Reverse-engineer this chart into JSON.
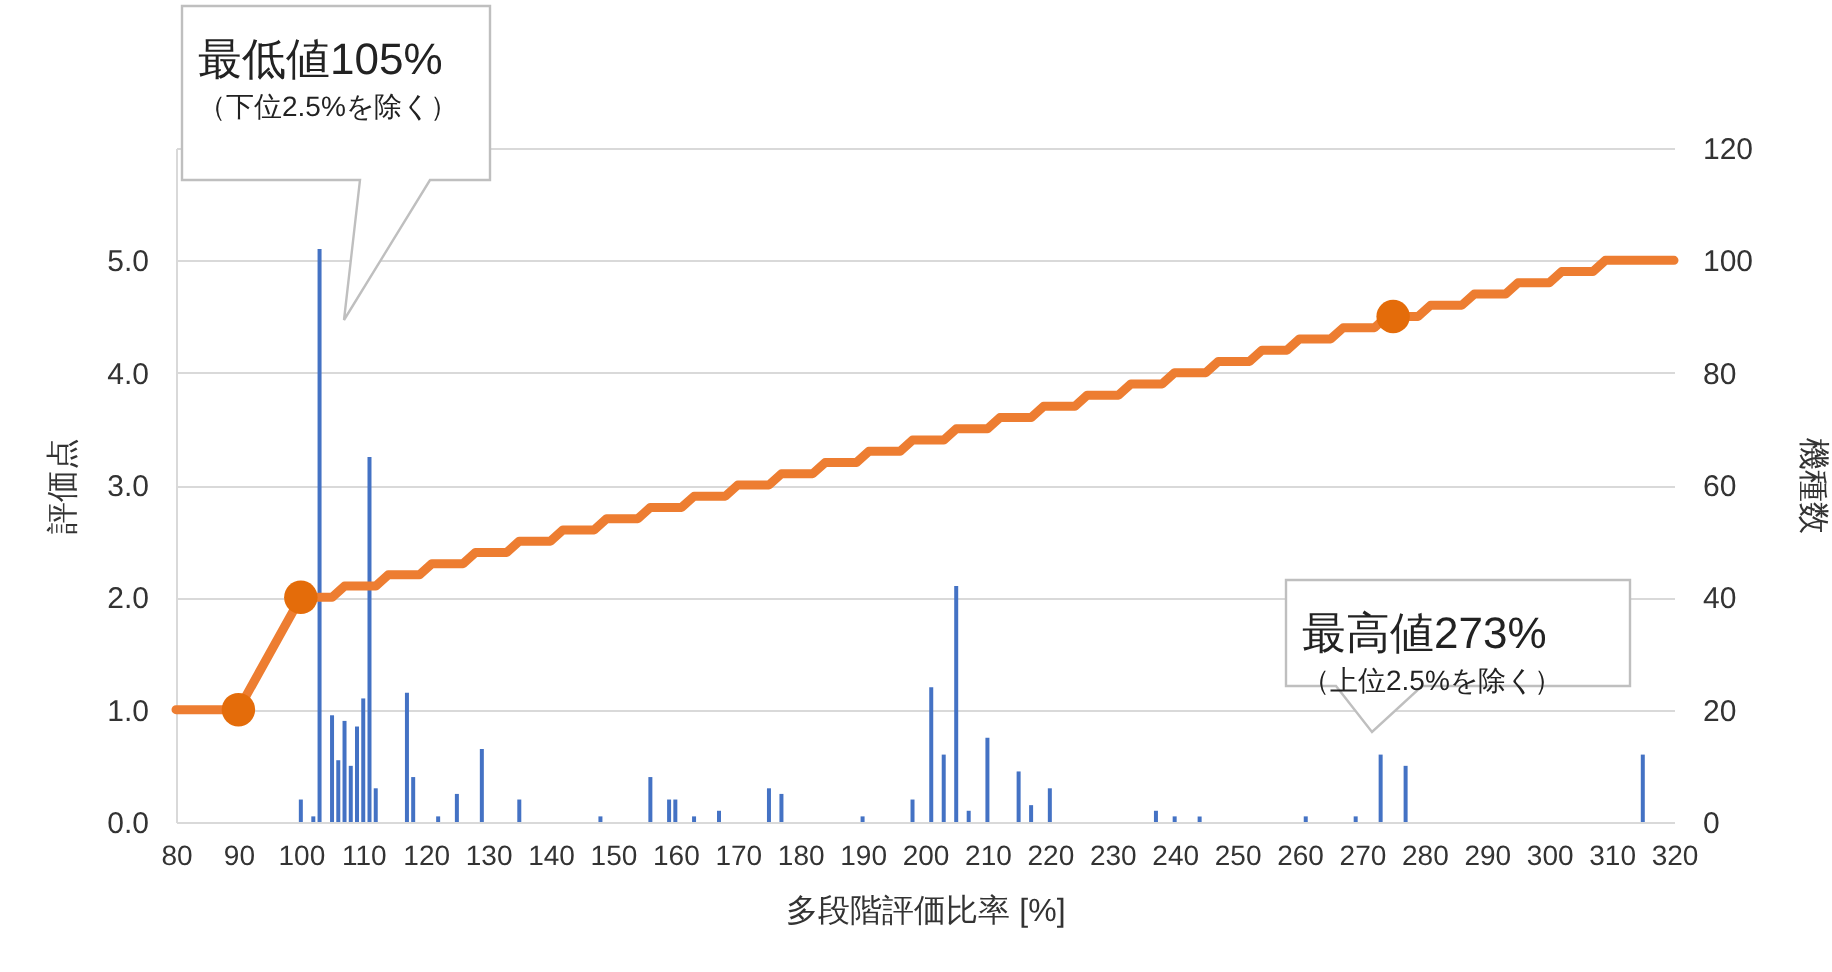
{
  "chart_data": {
    "type": "line",
    "xlabel": "多段階評価比率 [%]",
    "ylabel": "評価点",
    "y2label": "機種数",
    "xlim": [
      80,
      320
    ],
    "xticks": [
      80,
      90,
      100,
      110,
      120,
      130,
      140,
      150,
      160,
      170,
      180,
      190,
      200,
      210,
      220,
      230,
      240,
      250,
      260,
      270,
      280,
      290,
      300,
      310,
      320
    ],
    "ylim": [
      0,
      6
    ],
    "yticks": [
      {
        "value": 0,
        "label": "0.0"
      },
      {
        "value": 1,
        "label": "1.0"
      },
      {
        "value": 2,
        "label": "2.0"
      },
      {
        "value": 3,
        "label": "3.0"
      },
      {
        "value": 4,
        "label": "4.0"
      },
      {
        "value": 5,
        "label": "5.0"
      },
      {
        "value": 6,
        "label": null
      }
    ],
    "y2lim": [
      0,
      120
    ],
    "y2ticks": [
      0,
      20,
      40,
      60,
      80,
      100,
      120
    ],
    "grid": "y",
    "series": [
      {
        "type": "bar",
        "axis": "y2",
        "color": "#4472c4",
        "x": [
          100,
          102,
          103,
          105,
          106,
          107,
          108,
          109,
          110,
          111,
          112,
          117,
          118,
          122,
          125,
          129,
          135,
          148,
          156,
          159,
          160,
          163,
          167,
          175,
          177,
          190,
          198,
          201,
          203,
          205,
          207,
          210,
          215,
          217,
          220,
          237,
          240,
          244,
          261,
          269,
          273,
          277,
          315
        ],
        "values": [
          4,
          1,
          102,
          19,
          11,
          18,
          10,
          17,
          22,
          65,
          6,
          23,
          8,
          1,
          5,
          13,
          4,
          1,
          8,
          4,
          4,
          1,
          2,
          6,
          5,
          1,
          4,
          24,
          12,
          42,
          2,
          15,
          9,
          3,
          6,
          2,
          1,
          1,
          1,
          1,
          12,
          10,
          12
        ]
      },
      {
        "color": "#ed7d31",
        "line_style": "solid",
        "marker": "none",
        "x": [
          80,
          90,
          100,
          105,
          107,
          112,
          114,
          119,
          121,
          126,
          128,
          133,
          135,
          140,
          142,
          147,
          149,
          154,
          156,
          161,
          163,
          168,
          170,
          175,
          177,
          182,
          184,
          189,
          191,
          196,
          198,
          203,
          205,
          210,
          212,
          217,
          219,
          224,
          226,
          231,
          233,
          238,
          240,
          245,
          247,
          252,
          254,
          258,
          260,
          265,
          267,
          272,
          274,
          279,
          281,
          286,
          288,
          293,
          295,
          300,
          302,
          307,
          309,
          320
        ],
        "values": [
          1.0,
          1.0,
          2.0,
          2.0,
          2.1,
          2.1,
          2.2,
          2.2,
          2.3,
          2.3,
          2.4,
          2.4,
          2.5,
          2.5,
          2.6,
          2.6,
          2.7,
          2.7,
          2.8,
          2.8,
          2.9,
          2.9,
          3.0,
          3.0,
          3.1,
          3.1,
          3.2,
          3.2,
          3.3,
          3.3,
          3.4,
          3.4,
          3.5,
          3.5,
          3.6,
          3.6,
          3.7,
          3.7,
          3.8,
          3.8,
          3.9,
          3.9,
          4.0,
          4.0,
          4.1,
          4.1,
          4.2,
          4.2,
          4.3,
          4.3,
          4.4,
          4.4,
          4.5,
          4.5,
          4.6,
          4.6,
          4.7,
          4.7,
          4.8,
          4.8,
          4.9,
          4.9,
          5.0,
          5.0
        ]
      },
      {
        "type": "scatter",
        "color": "#e46c0a",
        "marker": "circle",
        "x": [
          90,
          100,
          275
        ],
        "values": [
          1.0,
          2.0,
          4.5
        ]
      }
    ],
    "annotations": [
      "最低値105%\n（下位2.5%を除く）",
      "最高値273%\n（上位2.5%を除く）"
    ]
  }
}
